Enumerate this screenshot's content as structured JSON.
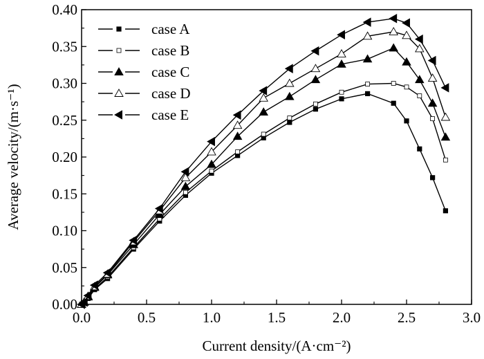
{
  "chart_data": {
    "type": "line",
    "title": "",
    "xlabel": "Current density/(A·cm⁻²)",
    "ylabel": "Average velocity/(m·s⁻¹)",
    "xlim": [
      0.0,
      3.0
    ],
    "ylim": [
      0.0,
      0.4
    ],
    "x_ticks": [
      "0.0",
      "0.5",
      "1.0",
      "1.5",
      "2.0",
      "2.5",
      "3.0"
    ],
    "y_ticks": [
      "0.00",
      "0.05",
      "0.10",
      "0.15",
      "0.20",
      "0.25",
      "0.30",
      "0.35",
      "0.40"
    ],
    "grid": false,
    "legend_position": "top-left",
    "series": [
      {
        "name": "case A",
        "marker": "filled-square",
        "x": [
          0.0,
          0.02,
          0.05,
          0.1,
          0.2,
          0.4,
          0.6,
          0.8,
          1.0,
          1.2,
          1.4,
          1.6,
          1.8,
          2.0,
          2.2,
          2.4,
          2.5,
          2.6,
          2.7,
          2.8
        ],
        "y": [
          0.0,
          0.002,
          0.008,
          0.02,
          0.035,
          0.075,
          0.113,
          0.148,
          0.178,
          0.202,
          0.226,
          0.247,
          0.265,
          0.279,
          0.286,
          0.273,
          0.249,
          0.211,
          0.172,
          0.127
        ]
      },
      {
        "name": "case B",
        "marker": "open-square",
        "x": [
          0.0,
          0.02,
          0.05,
          0.1,
          0.2,
          0.4,
          0.6,
          0.8,
          1.0,
          1.2,
          1.4,
          1.6,
          1.8,
          2.0,
          2.2,
          2.4,
          2.5,
          2.6,
          2.7,
          2.8
        ],
        "y": [
          0.0,
          0.002,
          0.009,
          0.021,
          0.037,
          0.077,
          0.116,
          0.152,
          0.181,
          0.207,
          0.231,
          0.253,
          0.272,
          0.288,
          0.299,
          0.3,
          0.295,
          0.283,
          0.252,
          0.196
        ]
      },
      {
        "name": "case C",
        "marker": "filled-triangle-up",
        "x": [
          0.0,
          0.02,
          0.05,
          0.1,
          0.2,
          0.4,
          0.6,
          0.8,
          1.0,
          1.2,
          1.4,
          1.6,
          1.8,
          2.0,
          2.2,
          2.4,
          2.5,
          2.6,
          2.7,
          2.8
        ],
        "y": [
          0.0,
          0.003,
          0.01,
          0.023,
          0.04,
          0.081,
          0.122,
          0.16,
          0.19,
          0.228,
          0.261,
          0.282,
          0.305,
          0.326,
          0.333,
          0.348,
          0.329,
          0.305,
          0.273,
          0.227
        ]
      },
      {
        "name": "case D",
        "marker": "open-triangle-up",
        "x": [
          0.0,
          0.02,
          0.05,
          0.1,
          0.2,
          0.4,
          0.6,
          0.8,
          1.0,
          1.2,
          1.4,
          1.6,
          1.8,
          2.0,
          2.2,
          2.4,
          2.5,
          2.6,
          2.7,
          2.8
        ],
        "y": [
          0.0,
          0.003,
          0.011,
          0.024,
          0.041,
          0.085,
          0.127,
          0.172,
          0.207,
          0.243,
          0.28,
          0.3,
          0.32,
          0.34,
          0.364,
          0.37,
          0.365,
          0.347,
          0.307,
          0.254
        ]
      },
      {
        "name": "case E",
        "marker": "filled-triangle-left",
        "x": [
          0.0,
          0.02,
          0.05,
          0.1,
          0.2,
          0.4,
          0.6,
          0.8,
          1.0,
          1.2,
          1.4,
          1.6,
          1.8,
          2.0,
          2.2,
          2.4,
          2.5,
          2.6,
          2.7,
          2.8
        ],
        "y": [
          0.0,
          0.003,
          0.012,
          0.026,
          0.043,
          0.087,
          0.13,
          0.18,
          0.221,
          0.257,
          0.29,
          0.32,
          0.344,
          0.366,
          0.383,
          0.388,
          0.382,
          0.36,
          0.331,
          0.294
        ]
      }
    ]
  }
}
